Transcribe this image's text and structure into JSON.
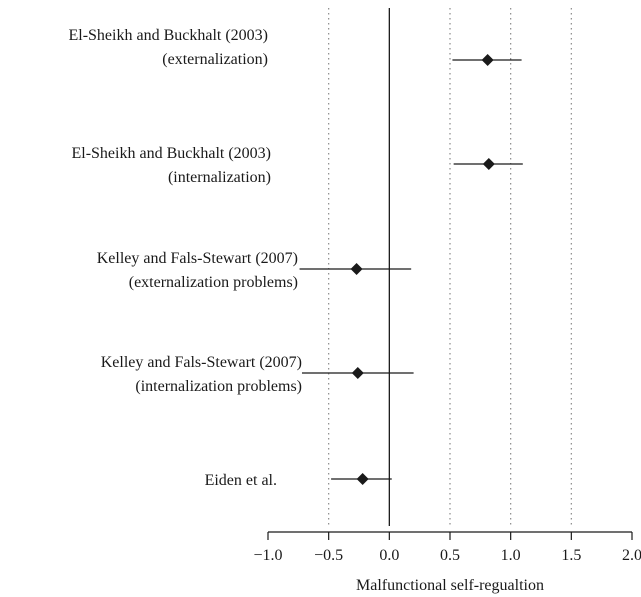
{
  "chart_data": {
    "type": "forest",
    "xlabel": "Malfunctional self-regualtion",
    "xlim": [
      -1.0,
      2.0
    ],
    "xticks": [
      -1.0,
      -0.5,
      0.0,
      0.5,
      1.0,
      1.5,
      2.0
    ],
    "xtick_labels": [
      "−1.0",
      "−0.5",
      "0.0",
      "0.5",
      "1.0",
      "1.5",
      "2.0"
    ],
    "reference_lines_dotted": [
      -0.5,
      0.5,
      1.0,
      1.5
    ],
    "reference_line_solid": 0.0,
    "marker": "diamond",
    "studies": [
      {
        "label_lines": [
          "El-Sheikh and Buckhalt (2003)",
          "(externalization)"
        ],
        "estimate": 0.81,
        "ci": [
          0.52,
          1.09
        ]
      },
      {
        "label_lines": [
          "El-Sheikh and Buckhalt (2003)",
          "(internalization)"
        ],
        "estimate": 0.82,
        "ci": [
          0.53,
          1.1
        ]
      },
      {
        "label_lines": [
          "Kelley and Fals-Stewart (2007)",
          "(externalization problems)"
        ],
        "estimate": -0.27,
        "ci": [
          -0.74,
          0.18
        ]
      },
      {
        "label_lines": [
          "Kelley and Fals-Stewart (2007)",
          "(internalization problems)"
        ],
        "estimate": -0.26,
        "ci": [
          -0.72,
          0.2
        ]
      },
      {
        "label_lines": [
          "Eiden et al."
        ],
        "estimate": -0.22,
        "ci": [
          -0.48,
          0.02
        ]
      }
    ]
  }
}
